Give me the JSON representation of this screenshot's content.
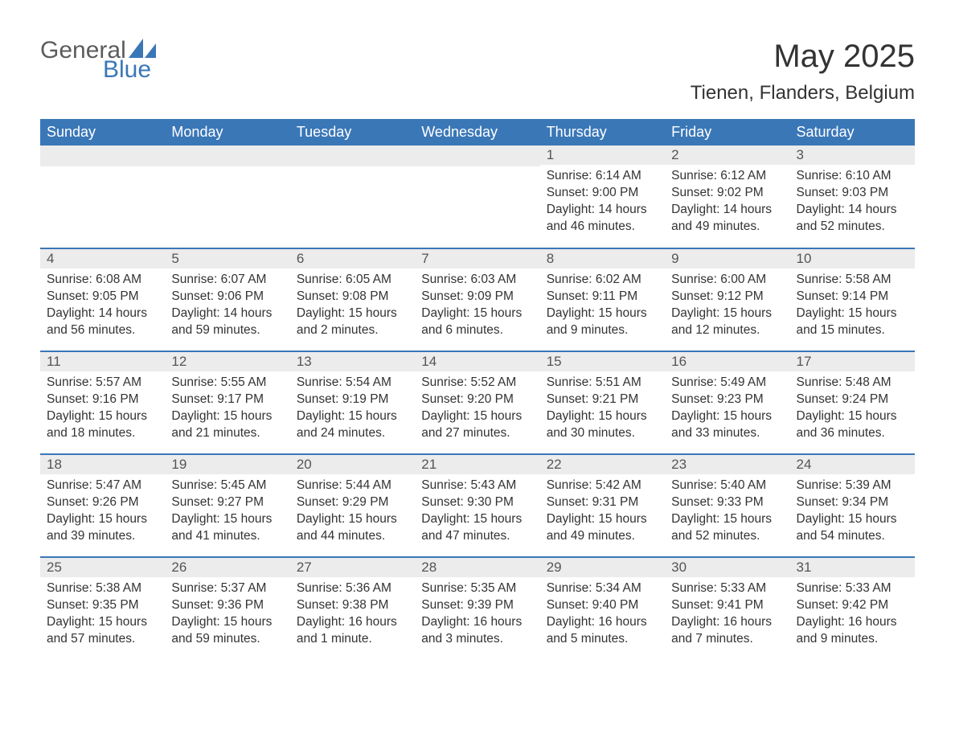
{
  "logo": {
    "word1": "General",
    "word2": "Blue"
  },
  "title": "May 2025",
  "subtitle": "Tienen, Flanders, Belgium",
  "colors": {
    "header_bg": "#3a77b7",
    "header_text": "#ffffff",
    "daynum_bg": "#ececec",
    "daynum_text": "#555555",
    "body_text": "#333333",
    "page_bg": "#ffffff",
    "logo_gray": "#5c5c5c",
    "logo_blue": "#3a77b7"
  },
  "layout": {
    "columns": 7,
    "weeks": 5,
    "blank_leading_cells": 4
  },
  "dow": [
    "Sunday",
    "Monday",
    "Tuesday",
    "Wednesday",
    "Thursday",
    "Friday",
    "Saturday"
  ],
  "days": [
    {
      "n": "1",
      "sunrise": "6:14 AM",
      "sunset": "9:00 PM",
      "daylight": "14 hours and 46 minutes."
    },
    {
      "n": "2",
      "sunrise": "6:12 AM",
      "sunset": "9:02 PM",
      "daylight": "14 hours and 49 minutes."
    },
    {
      "n": "3",
      "sunrise": "6:10 AM",
      "sunset": "9:03 PM",
      "daylight": "14 hours and 52 minutes."
    },
    {
      "n": "4",
      "sunrise": "6:08 AM",
      "sunset": "9:05 PM",
      "daylight": "14 hours and 56 minutes."
    },
    {
      "n": "5",
      "sunrise": "6:07 AM",
      "sunset": "9:06 PM",
      "daylight": "14 hours and 59 minutes."
    },
    {
      "n": "6",
      "sunrise": "6:05 AM",
      "sunset": "9:08 PM",
      "daylight": "15 hours and 2 minutes."
    },
    {
      "n": "7",
      "sunrise": "6:03 AM",
      "sunset": "9:09 PM",
      "daylight": "15 hours and 6 minutes."
    },
    {
      "n": "8",
      "sunrise": "6:02 AM",
      "sunset": "9:11 PM",
      "daylight": "15 hours and 9 minutes."
    },
    {
      "n": "9",
      "sunrise": "6:00 AM",
      "sunset": "9:12 PM",
      "daylight": "15 hours and 12 minutes."
    },
    {
      "n": "10",
      "sunrise": "5:58 AM",
      "sunset": "9:14 PM",
      "daylight": "15 hours and 15 minutes."
    },
    {
      "n": "11",
      "sunrise": "5:57 AM",
      "sunset": "9:16 PM",
      "daylight": "15 hours and 18 minutes."
    },
    {
      "n": "12",
      "sunrise": "5:55 AM",
      "sunset": "9:17 PM",
      "daylight": "15 hours and 21 minutes."
    },
    {
      "n": "13",
      "sunrise": "5:54 AM",
      "sunset": "9:19 PM",
      "daylight": "15 hours and 24 minutes."
    },
    {
      "n": "14",
      "sunrise": "5:52 AM",
      "sunset": "9:20 PM",
      "daylight": "15 hours and 27 minutes."
    },
    {
      "n": "15",
      "sunrise": "5:51 AM",
      "sunset": "9:21 PM",
      "daylight": "15 hours and 30 minutes."
    },
    {
      "n": "16",
      "sunrise": "5:49 AM",
      "sunset": "9:23 PM",
      "daylight": "15 hours and 33 minutes."
    },
    {
      "n": "17",
      "sunrise": "5:48 AM",
      "sunset": "9:24 PM",
      "daylight": "15 hours and 36 minutes."
    },
    {
      "n": "18",
      "sunrise": "5:47 AM",
      "sunset": "9:26 PM",
      "daylight": "15 hours and 39 minutes."
    },
    {
      "n": "19",
      "sunrise": "5:45 AM",
      "sunset": "9:27 PM",
      "daylight": "15 hours and 41 minutes."
    },
    {
      "n": "20",
      "sunrise": "5:44 AM",
      "sunset": "9:29 PM",
      "daylight": "15 hours and 44 minutes."
    },
    {
      "n": "21",
      "sunrise": "5:43 AM",
      "sunset": "9:30 PM",
      "daylight": "15 hours and 47 minutes."
    },
    {
      "n": "22",
      "sunrise": "5:42 AM",
      "sunset": "9:31 PM",
      "daylight": "15 hours and 49 minutes."
    },
    {
      "n": "23",
      "sunrise": "5:40 AM",
      "sunset": "9:33 PM",
      "daylight": "15 hours and 52 minutes."
    },
    {
      "n": "24",
      "sunrise": "5:39 AM",
      "sunset": "9:34 PM",
      "daylight": "15 hours and 54 minutes."
    },
    {
      "n": "25",
      "sunrise": "5:38 AM",
      "sunset": "9:35 PM",
      "daylight": "15 hours and 57 minutes."
    },
    {
      "n": "26",
      "sunrise": "5:37 AM",
      "sunset": "9:36 PM",
      "daylight": "15 hours and 59 minutes."
    },
    {
      "n": "27",
      "sunrise": "5:36 AM",
      "sunset": "9:38 PM",
      "daylight": "16 hours and 1 minute."
    },
    {
      "n": "28",
      "sunrise": "5:35 AM",
      "sunset": "9:39 PM",
      "daylight": "16 hours and 3 minutes."
    },
    {
      "n": "29",
      "sunrise": "5:34 AM",
      "sunset": "9:40 PM",
      "daylight": "16 hours and 5 minutes."
    },
    {
      "n": "30",
      "sunrise": "5:33 AM",
      "sunset": "9:41 PM",
      "daylight": "16 hours and 7 minutes."
    },
    {
      "n": "31",
      "sunrise": "5:33 AM",
      "sunset": "9:42 PM",
      "daylight": "16 hours and 9 minutes."
    }
  ],
  "labels": {
    "sunrise": "Sunrise: ",
    "sunset": "Sunset: ",
    "daylight": "Daylight: "
  }
}
